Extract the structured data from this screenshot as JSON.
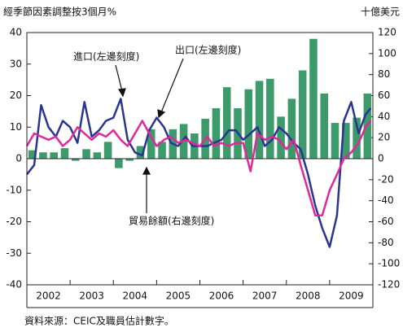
{
  "chart_data": {
    "type": "bar_line",
    "y_label": "經季節因素調整按3個月%",
    "y2_label": "十億美元",
    "source": "資料來源：CEIC及職員估計數字。",
    "annotations": [
      "進口(左邊刻度)",
      "出口(左邊刻度)",
      "貿易餘額(右邊刻度)"
    ],
    "xlim": [
      2002,
      2010
    ],
    "xticks": [
      2002,
      2003,
      2004,
      2005,
      2006,
      2007,
      2008,
      2009
    ],
    "ylim": [
      -40,
      40
    ],
    "yticks": [
      -40,
      -30,
      -20,
      -10,
      0,
      10,
      20,
      30,
      40
    ],
    "y2lim": [
      -120,
      120
    ],
    "y2ticks": [
      -120,
      -100,
      -80,
      -60,
      -40,
      -20,
      0,
      20,
      40,
      60,
      80,
      100,
      120
    ],
    "series": [
      {
        "name": "貿易餘額",
        "type": "bar",
        "axis": "y2",
        "color": "#3d9a6b",
        "x": [
          2002.125,
          2002.375,
          2002.625,
          2002.875,
          2003.125,
          2003.375,
          2003.625,
          2003.875,
          2004.125,
          2004.375,
          2004.625,
          2004.875,
          2005.125,
          2005.375,
          2005.625,
          2005.875,
          2006.125,
          2006.375,
          2006.625,
          2006.875,
          2007.125,
          2007.375,
          2007.625,
          2007.875,
          2008.125,
          2008.375,
          2008.625,
          2008.875,
          2009.125,
          2009.375,
          2009.625,
          2009.875
        ],
        "values": [
          8,
          6,
          6,
          10,
          -2,
          9,
          6,
          16,
          -9,
          -2,
          12,
          28,
          16,
          28,
          33,
          24,
          38,
          48,
          68,
          48,
          66,
          74,
          76,
          40,
          57,
          84,
          114,
          62,
          34,
          34,
          39,
          62
        ]
      },
      {
        "name": "進口",
        "type": "line",
        "color": "#2b3590",
        "x": [
          2002.0,
          2002.17,
          2002.33,
          2002.5,
          2002.67,
          2002.83,
          2003.0,
          2003.17,
          2003.33,
          2003.5,
          2003.67,
          2003.83,
          2004.0,
          2004.17,
          2004.33,
          2004.5,
          2004.67,
          2004.83,
          2005.0,
          2005.17,
          2005.33,
          2005.5,
          2005.67,
          2005.83,
          2006.0,
          2006.17,
          2006.33,
          2006.5,
          2006.67,
          2006.83,
          2007.0,
          2007.17,
          2007.33,
          2007.5,
          2007.67,
          2007.83,
          2008.0,
          2008.17,
          2008.33,
          2008.5,
          2008.67,
          2008.83,
          2009.0,
          2009.17,
          2009.33,
          2009.5,
          2009.67,
          2009.83,
          2009.95
        ],
        "values": [
          -5,
          -2,
          17,
          10,
          7,
          12,
          10,
          5,
          18,
          7,
          9,
          12,
          13,
          19,
          6,
          2,
          1,
          9,
          13,
          10,
          5,
          4,
          7,
          4,
          4,
          4,
          5,
          6,
          9,
          9,
          6,
          8,
          10,
          4,
          6,
          10,
          8,
          5,
          3,
          -5,
          -15,
          -22,
          -28,
          -18,
          12,
          18,
          8,
          14,
          16
        ]
      },
      {
        "name": "出口",
        "type": "line",
        "color": "#e0289a",
        "x": [
          2002.0,
          2002.17,
          2002.33,
          2002.5,
          2002.67,
          2002.83,
          2003.0,
          2003.17,
          2003.33,
          2003.5,
          2003.67,
          2003.83,
          2004.0,
          2004.17,
          2004.33,
          2004.5,
          2004.67,
          2004.83,
          2005.0,
          2005.17,
          2005.33,
          2005.5,
          2005.67,
          2005.83,
          2006.0,
          2006.17,
          2006.33,
          2006.5,
          2006.67,
          2006.83,
          2007.0,
          2007.17,
          2007.33,
          2007.5,
          2007.67,
          2007.83,
          2008.0,
          2008.17,
          2008.33,
          2008.5,
          2008.67,
          2008.83,
          2009.0,
          2009.17,
          2009.33,
          2009.5,
          2009.67,
          2009.83,
          2009.95
        ],
        "values": [
          4,
          8,
          7,
          6,
          7,
          4,
          6,
          10,
          8,
          6,
          8,
          7,
          9,
          6,
          4,
          8,
          12,
          8,
          4,
          6,
          7,
          5,
          6,
          5,
          4,
          7,
          4,
          5,
          4,
          5,
          5,
          -4,
          8,
          6,
          7,
          6,
          3,
          6,
          -2,
          -10,
          -18,
          -18,
          -10,
          -5,
          0,
          2,
          5,
          10,
          12
        ]
      }
    ]
  }
}
